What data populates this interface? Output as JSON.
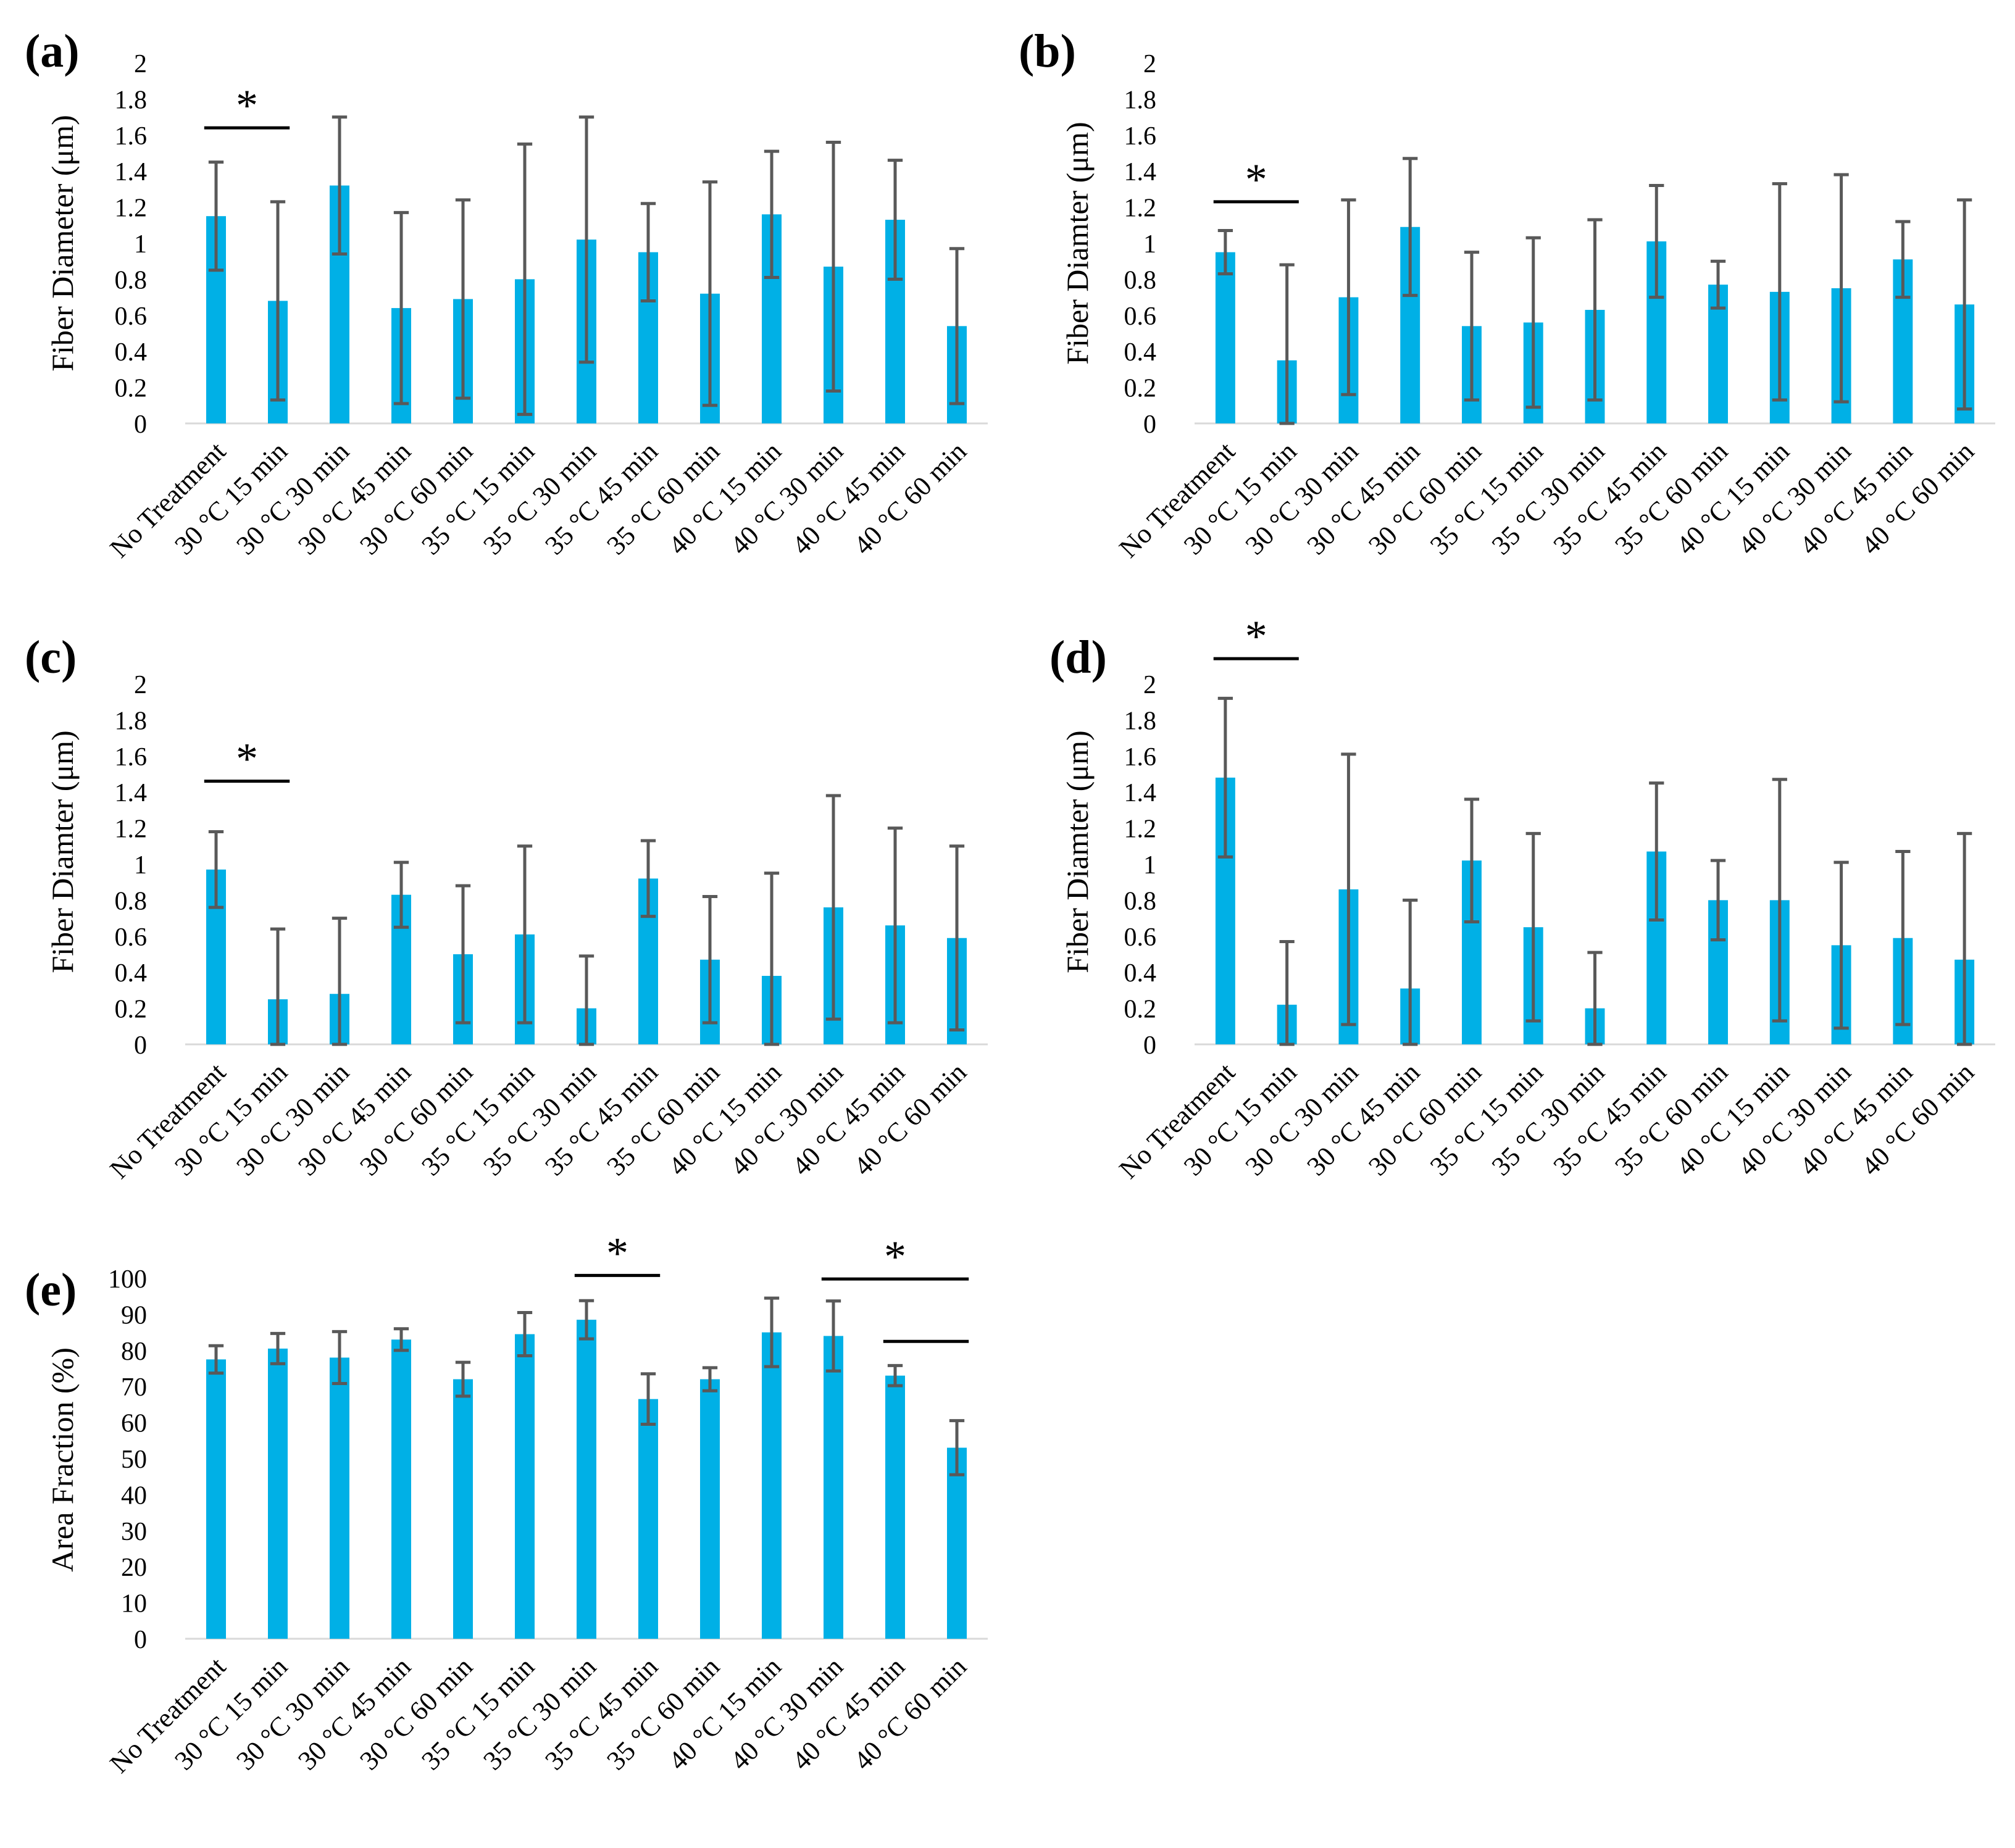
{
  "figure": {
    "colors": {
      "bar": "#00B0E6",
      "error_bar": "#595959",
      "axis": "#D9D9D9",
      "text": "#000000",
      "annotation": "#000000"
    }
  },
  "chart_data": [
    {
      "panel": "(a)",
      "type": "bar",
      "categories": [
        "No Treatment",
        "30 °C 15 min",
        "30 °C 30 min",
        "30 °C 45 min",
        "30 °C 60 min",
        "35 °C 15 min",
        "35 °C 30 min",
        "35 °C 45 min",
        "35 °C 60 min",
        "40 °C 15 min",
        "40 °C 30 min",
        "40 °C 45 min",
        "40 °C 60 min"
      ],
      "values": [
        1.15,
        0.68,
        1.32,
        0.64,
        0.69,
        0.8,
        1.02,
        0.95,
        0.72,
        1.16,
        0.87,
        1.13,
        0.54
      ],
      "errors": [
        0.3,
        0.55,
        0.38,
        0.53,
        0.55,
        0.75,
        0.68,
        0.27,
        0.62,
        0.35,
        0.69,
        0.33,
        0.43
      ],
      "ylabel": "Fiber Diameter (μm)",
      "ylim": [
        0,
        2
      ],
      "yticks": [
        "0",
        "0.2",
        "0.4",
        "0.6",
        "0.8",
        "1",
        "1.2",
        "1.4",
        "1.6",
        "1.8",
        "2"
      ],
      "significance": [
        {
          "from": 0,
          "to": 1,
          "label": "*",
          "y": 1.64
        }
      ]
    },
    {
      "panel": "(b)",
      "type": "bar",
      "categories": [
        "No Treatment",
        "30 °C 15 min",
        "30 °C 30 min",
        "30 °C 45 min",
        "30 °C 60 min",
        "35 °C 15 min",
        "35 °C 30 min",
        "35 °C 45 min",
        "35 °C 60 min",
        "40 °C 15 min",
        "40 °C 30 min",
        "40 °C 45 min",
        "40 °C 60 min"
      ],
      "values": [
        0.95,
        0.35,
        0.7,
        1.09,
        0.54,
        0.56,
        0.63,
        1.01,
        0.77,
        0.73,
        0.75,
        0.91,
        0.66
      ],
      "errors": [
        0.12,
        0.53,
        0.54,
        0.38,
        0.41,
        0.47,
        0.5,
        0.31,
        0.13,
        0.6,
        0.63,
        0.21,
        0.58
      ],
      "ylabel": "Fiber Diamter (μm)",
      "ylim": [
        0,
        2
      ],
      "yticks": [
        "0",
        "0.2",
        "0.4",
        "0.6",
        "0.8",
        "1",
        "1.2",
        "1.4",
        "1.6",
        "1.8",
        "2"
      ],
      "significance": [
        {
          "from": 0,
          "to": 1,
          "label": "*",
          "y": 1.23
        }
      ]
    },
    {
      "panel": "(c)",
      "type": "bar",
      "categories": [
        "No Treatment",
        "30 °C 15 min",
        "30 °C 30 min",
        "30 °C 45 min",
        "30 °C 60 min",
        "35 °C 15 min",
        "35 °C 30 min",
        "35 °C 45 min",
        "35 °C 60 min",
        "40 °C 15 min",
        "40 °C 30 min",
        "40 °C 45 min",
        "40 °C 60 min"
      ],
      "values": [
        0.97,
        0.25,
        0.28,
        0.83,
        0.5,
        0.61,
        0.2,
        0.92,
        0.47,
        0.38,
        0.76,
        0.66,
        0.59
      ],
      "errors": [
        0.21,
        0.39,
        0.42,
        0.18,
        0.38,
        0.49,
        0.29,
        0.21,
        0.35,
        0.57,
        0.62,
        0.54,
        0.51
      ],
      "ylabel": "Fiber Diamter (μm)",
      "ylim": [
        0,
        2
      ],
      "yticks": [
        "0",
        "0.2",
        "0.4",
        "0.6",
        "0.8",
        "1",
        "1.2",
        "1.4",
        "1.6",
        "1.8",
        "2"
      ],
      "significance": [
        {
          "from": 0,
          "to": 1,
          "label": "*",
          "y": 1.46
        }
      ]
    },
    {
      "panel": "(d)",
      "type": "bar",
      "categories": [
        "No Treatment",
        "30 °C 15 min",
        "30 °C 30 min",
        "30 °C 45 min",
        "30 °C 60 min",
        "35 °C 15 min",
        "35 °C 30 min",
        "35 °C 45 min",
        "35 °C 60 min",
        "40 °C 15 min",
        "40 °C 30 min",
        "40 °C 45 min",
        "40 °C 60 min"
      ],
      "values": [
        1.48,
        0.22,
        0.86,
        0.31,
        1.02,
        0.65,
        0.2,
        1.07,
        0.8,
        0.8,
        0.55,
        0.59,
        0.47
      ],
      "errors": [
        0.44,
        0.35,
        0.75,
        0.49,
        0.34,
        0.52,
        0.31,
        0.38,
        0.22,
        0.67,
        0.46,
        0.48,
        0.7
      ],
      "ylabel": "Fiber Diamter (μm)",
      "ylim": [
        0,
        2
      ],
      "yticks": [
        "0",
        "0.2",
        "0.4",
        "0.6",
        "0.8",
        "1",
        "1.2",
        "1.4",
        "1.6",
        "1.8",
        "2"
      ],
      "significance": [
        {
          "from": 0,
          "to": 1,
          "label": "*",
          "y": 2.14
        }
      ]
    },
    {
      "panel": "(e)",
      "type": "bar",
      "categories": [
        "No Treatment",
        "30 °C 15 min",
        "30 °C 30 min",
        "30 °C 45 min",
        "30 °C 60 min",
        "35 °C 15 min",
        "35 °C 30 min",
        "35 °C 45 min",
        "35 °C 60 min",
        "40 °C 15 min",
        "40 °C 30 min",
        "40 °C 45 min",
        "40 °C 60 min"
      ],
      "values": [
        77.5,
        80.5,
        78,
        83,
        72,
        84.5,
        88.5,
        66.5,
        72,
        85,
        84,
        73,
        53
      ],
      "errors": [
        3.8,
        4.2,
        7.2,
        3.0,
        4.7,
        6.0,
        5.3,
        7.0,
        3.2,
        9.5,
        9.7,
        2.8,
        7.5
      ],
      "ylabel": "Area Fraction (%)",
      "ylim": [
        0,
        100
      ],
      "yticks": [
        "0",
        "10",
        "20",
        "30",
        "40",
        "50",
        "60",
        "70",
        "80",
        "90",
        "100"
      ],
      "significance": [
        {
          "from": 6,
          "to": 7,
          "label": "*",
          "y": 100.8
        },
        {
          "from": 10,
          "to": 12,
          "label": "*",
          "y": 99.8
        },
        {
          "from": 11,
          "to": 12,
          "label": "",
          "y": 82.5
        }
      ]
    }
  ]
}
